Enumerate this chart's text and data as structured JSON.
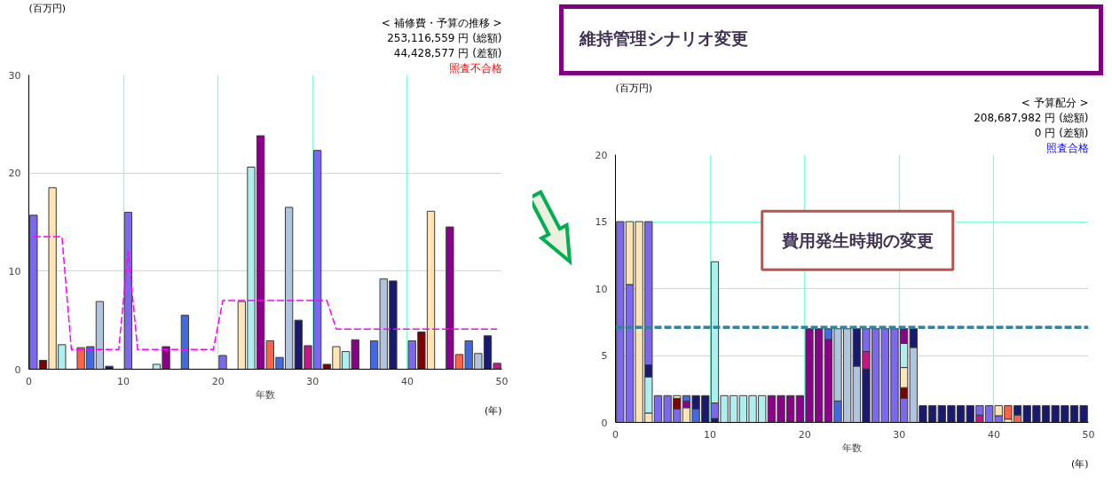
{
  "chart_data": [
    {
      "type": "bar",
      "title": "< 補修費・予算の推移 >",
      "xlabel": "年数",
      "ylabel": "(百万円)",
      "annotations": [
        "253,116,559 円 (総額)",
        "44,428,577 円 (差額)",
        "照査不合格",
        "(年)"
      ],
      "xlim": [
        0,
        50
      ],
      "xticks": [
        0,
        10,
        20,
        30,
        40,
        50
      ],
      "ylim": [
        0,
        30
      ],
      "yticks": [
        0,
        10,
        20,
        30
      ],
      "grid": true,
      "x": [
        0.5,
        1.5,
        2.5,
        3.5,
        4.5,
        5.5,
        6.5,
        7.5,
        8.5,
        9.5,
        10.5,
        11.5,
        12.5,
        13.5,
        14.5,
        15.5,
        16.5,
        17.5,
        18.5,
        19.5,
        20.5,
        21.5,
        22.5,
        23.5,
        24.5,
        25.5,
        26.5,
        27.5,
        28.5,
        29.5,
        30.5,
        31.5,
        32.5,
        33.5,
        34.5,
        35.5,
        36.5,
        37.5,
        38.5,
        39.5,
        40.5,
        41.5,
        42.5,
        43.5,
        44.5,
        45.5,
        46.5,
        47.5,
        48.5,
        49.5
      ],
      "series": [
        {
          "type": "bar",
          "values": [
            15.7,
            0.9,
            18.5,
            2.5,
            null,
            2.2,
            2.3,
            6.9,
            0.3,
            null,
            16.0,
            null,
            null,
            0.5,
            2.3,
            null,
            5.5,
            null,
            null,
            null,
            1.4,
            null,
            6.9,
            20.6,
            23.8,
            2.9,
            1.2,
            16.5,
            5.0,
            2.4,
            22.3,
            0.5,
            2.3,
            1.8,
            3.0,
            null,
            2.9,
            9.2,
            9.0,
            null,
            2.9,
            3.8,
            16.1,
            null,
            14.5,
            1.5,
            2.9,
            1.6,
            3.4,
            0.6
          ],
          "colors": [
            "#7b68ee",
            "#800000",
            "#ffe4b5",
            "#afeeee",
            null,
            "#ff6347",
            "#4169e1",
            "#b0c4de",
            "#191970",
            null,
            "#7b68ee",
            null,
            null,
            "#afeeee",
            "#8b008b",
            null,
            "#4169e1",
            null,
            null,
            null,
            "#7b68ee",
            null,
            "#ffe4b5",
            "#afeeee",
            "#8b008b",
            "#ff6347",
            "#4169e1",
            "#b0c4de",
            "#191970",
            "#c71585",
            "#7b68ee",
            "#800000",
            "#ffe4b5",
            "#afeeee",
            "#8b008b",
            null,
            "#4169e1",
            "#b0c4de",
            "#191970",
            null,
            "#7b68ee",
            "#800000",
            "#ffe4b5",
            null,
            "#8b008b",
            "#ff6347",
            "#4169e1",
            "#b0c4de",
            "#191970",
            "#c71585"
          ]
        },
        {
          "type": "line",
          "color": "#ff00ff",
          "line_style": "dashed",
          "values": [
            13.5,
            13.5,
            13.5,
            13.5,
            2.0,
            2.0,
            2.0,
            2.0,
            2.0,
            2.0,
            12.0,
            2.0,
            2.0,
            2.0,
            2.0,
            2.0,
            2.0,
            2.0,
            2.0,
            2.0,
            7.0,
            7.0,
            7.0,
            7.0,
            7.0,
            7.0,
            7.0,
            7.0,
            7.0,
            7.0,
            7.0,
            7.0,
            4.1,
            4.1,
            4.1,
            4.1,
            4.1,
            4.1,
            4.1,
            4.1,
            4.1,
            4.1,
            4.1,
            4.1,
            4.1,
            4.1,
            4.1,
            4.1,
            4.1,
            4.1
          ]
        }
      ]
    },
    {
      "type": "bar",
      "stacked": true,
      "title": "< 予算配分 >",
      "xlabel": "年数",
      "ylabel": "(百万円)",
      "annotations": [
        "208,687,982 円 (総額)",
        "0 円 (差額)",
        "照査合格",
        "(年)",
        "維持管理シナリオ変更",
        "費用発生時期の変更"
      ],
      "xlim": [
        0,
        50
      ],
      "xticks": [
        0,
        10,
        20,
        30,
        40,
        50
      ],
      "ylim": [
        0,
        20
      ],
      "yticks": [
        0,
        5,
        10,
        15,
        20
      ],
      "grid": true,
      "ref_lines": [
        {
          "axis": "y",
          "value": 7.1,
          "color": "#31849b",
          "line_style": "dashed"
        }
      ],
      "x": [
        0.5,
        1.5,
        2.5,
        3.5,
        4.5,
        5.5,
        6.5,
        7.5,
        8.5,
        9.5,
        10.5,
        11.5,
        12.5,
        13.5,
        14.5,
        15.5,
        16.5,
        17.5,
        18.5,
        19.5,
        20.5,
        21.5,
        22.5,
        23.5,
        24.5,
        25.5,
        26.5,
        27.5,
        28.5,
        29.5,
        30.5,
        31.5,
        32.5,
        33.5,
        34.5,
        35.5,
        36.5,
        37.5,
        38.5,
        39.5,
        40.5,
        41.5,
        42.5,
        43.5,
        44.5,
        45.5,
        46.5,
        47.5,
        48.5,
        49.5
      ],
      "series": [
        {
          "values": [
            15,
            10.3,
            15,
            0.7,
            2.0,
            2.0,
            1.0,
            1.1,
            1.0,
            2.0,
            0.3,
            2.0,
            2.0,
            2.0,
            2.0,
            2.0,
            2.0,
            2.0,
            2.0,
            2.0,
            7.0,
            7.0,
            6.2,
            1.6,
            7.0,
            4.2,
            4.0,
            7.0,
            7.0,
            7.0,
            1.8,
            5.6,
            1.25,
            1.25,
            1.25,
            1.25,
            1.25,
            1.25,
            null,
            1.25,
            0.5,
            0.25,
            0.55,
            1.25,
            1.25,
            1.25,
            1.25,
            1.25,
            1.25,
            1.25
          ],
          "colors": [
            "#7b68ee",
            "#7b68ee",
            "#ffe4b5",
            "#ffe4b5",
            "#7b68ee",
            "#7b68ee",
            "#7b68ee",
            "#ffe4b5",
            "#4169e1",
            "#191970",
            "#191970",
            "#afeeee",
            "#afeeee",
            "#afeeee",
            "#afeeee",
            "#afeeee",
            "#8b008b",
            "#8b008b",
            "#8b008b",
            "#8b008b",
            "#8b008b",
            "#8b008b",
            "#8b008b",
            "#4169e1",
            "#b0c4de",
            "#b0c4de",
            "#191970",
            "#7b68ee",
            "#7b68ee",
            "#7b68ee",
            "#7b68ee",
            "#b0c4de",
            "#191970",
            "#191970",
            "#191970",
            "#191970",
            "#191970",
            "#191970",
            null,
            "#7b68ee",
            "#7b68ee",
            "#ffe4b5",
            "#ff6347",
            "#191970",
            "#191970",
            "#191970",
            "#191970",
            "#191970",
            "#191970",
            "#191970"
          ]
        },
        {
          "values": [
            null,
            4.7,
            null,
            2.7,
            null,
            null,
            0.8,
            0.5,
            1.0,
            null,
            1.15,
            null,
            null,
            null,
            null,
            null,
            null,
            null,
            null,
            null,
            null,
            null,
            0.8,
            5.4,
            null,
            2.8,
            1.3,
            null,
            null,
            null,
            0.8,
            1.4,
            null,
            null,
            null,
            null,
            null,
            null,
            0.55,
            null,
            0.75,
            1.0,
            0.7,
            null,
            null,
            null,
            null,
            null,
            null,
            null
          ],
          "colors": [
            null,
            "#ffe4b5",
            null,
            "#afeeee",
            null,
            null,
            "#800000",
            "#8b008b",
            "#191970",
            null,
            "#7b68ee",
            null,
            null,
            null,
            null,
            null,
            null,
            null,
            null,
            null,
            null,
            null,
            "#4169e1",
            "#b0c4de",
            null,
            "#191970",
            "#c71585",
            null,
            null,
            null,
            "#800000",
            "#191970",
            null,
            null,
            null,
            null,
            null,
            null,
            "#c71585",
            null,
            "#ffe4b5",
            "#ff6347",
            "#191970",
            null,
            null,
            null,
            null,
            null,
            null,
            null
          ]
        },
        {
          "values": [
            null,
            null,
            null,
            0.9,
            null,
            null,
            0.2,
            0.4,
            null,
            null,
            10.55,
            null,
            null,
            null,
            null,
            null,
            null,
            null,
            null,
            null,
            null,
            null,
            null,
            null,
            null,
            null,
            1.7,
            null,
            null,
            null,
            1.5,
            null,
            null,
            null,
            null,
            null,
            null,
            null,
            0.7,
            null,
            null,
            null,
            null,
            null,
            null,
            null,
            null,
            null,
            null,
            null
          ],
          "colors": [
            null,
            null,
            null,
            "#191970",
            null,
            null,
            "#ffe4b5",
            "#4169e1",
            null,
            null,
            "#afeeee",
            null,
            null,
            null,
            null,
            null,
            null,
            null,
            null,
            null,
            null,
            null,
            null,
            null,
            null,
            null,
            "#7b68ee",
            null,
            null,
            null,
            "#ffe4b5",
            null,
            null,
            null,
            null,
            null,
            null,
            null,
            "#7b68ee",
            null,
            null,
            null,
            null,
            null,
            null,
            null,
            null,
            null,
            null,
            null
          ]
        },
        {
          "values": [
            null,
            null,
            null,
            10.7,
            null,
            null,
            null,
            null,
            null,
            null,
            null,
            null,
            null,
            null,
            null,
            null,
            null,
            null,
            null,
            null,
            null,
            null,
            null,
            null,
            null,
            null,
            null,
            null,
            null,
            null,
            1.8,
            null,
            null,
            null,
            null,
            null,
            null,
            null,
            null,
            null,
            null,
            null,
            null,
            null,
            null,
            null,
            null,
            null,
            null,
            null
          ],
          "colors": [
            null,
            null,
            null,
            "#7b68ee",
            null,
            null,
            null,
            null,
            null,
            null,
            null,
            null,
            null,
            null,
            null,
            null,
            null,
            null,
            null,
            null,
            null,
            null,
            null,
            null,
            null,
            null,
            null,
            null,
            null,
            null,
            "#afeeee",
            null,
            null,
            null,
            null,
            null,
            null,
            null,
            null,
            null,
            null,
            null,
            null,
            null,
            null,
            null,
            null,
            null,
            null,
            null
          ]
        },
        {
          "values": [
            null,
            null,
            null,
            null,
            null,
            null,
            null,
            null,
            null,
            null,
            null,
            null,
            null,
            null,
            null,
            null,
            null,
            null,
            null,
            null,
            null,
            null,
            null,
            null,
            null,
            null,
            null,
            null,
            null,
            null,
            1.1,
            null,
            null,
            null,
            null,
            null,
            null,
            null,
            null,
            null,
            null,
            null,
            null,
            null,
            null,
            null,
            null,
            null,
            null,
            null
          ],
          "colors": [
            null,
            null,
            null,
            null,
            null,
            null,
            null,
            null,
            null,
            null,
            null,
            null,
            null,
            null,
            null,
            null,
            null,
            null,
            null,
            null,
            null,
            null,
            null,
            null,
            null,
            null,
            null,
            null,
            null,
            null,
            "#8b008b",
            null,
            null,
            null,
            null,
            null,
            null,
            null,
            null,
            null,
            null,
            null,
            null,
            null,
            null,
            null,
            null,
            null,
            null,
            null
          ]
        }
      ]
    }
  ]
}
